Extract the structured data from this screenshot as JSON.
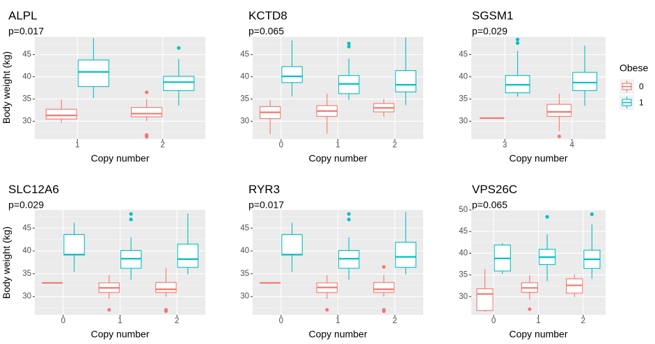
{
  "chart_data": {
    "type": "box",
    "ylabel": "Body weight (kg)",
    "xlabel": "Copy number",
    "legend": {
      "title": "Obese",
      "position": "right",
      "entries": [
        {
          "label": "0",
          "color": "#F8766D"
        },
        {
          "label": "1",
          "color": "#00BFC4"
        }
      ]
    },
    "panels": [
      {
        "title": "ALPL",
        "pvalue": "p=0.017",
        "ylim": [
          26,
          49
        ],
        "yticks": [
          "30",
          "35",
          "40",
          "45"
        ],
        "categories": [
          "1",
          "2"
        ],
        "boxes": [
          {
            "category": "1",
            "group": "0",
            "whislo": 29.6,
            "q1": 30.5,
            "med": 31.3,
            "q3": 32.7,
            "whishi": 34.9,
            "outliers": []
          },
          {
            "category": "1",
            "group": "1",
            "whislo": 35.2,
            "q1": 37.8,
            "med": 41.1,
            "q3": 43.8,
            "whishi": 48.7,
            "outliers": []
          },
          {
            "category": "2",
            "group": "0",
            "whislo": 30.0,
            "q1": 31.0,
            "med": 31.7,
            "q3": 33.1,
            "whishi": 35.0,
            "outliers": [
              36.5,
              26.9,
              26.5
            ]
          },
          {
            "category": "2",
            "group": "1",
            "whislo": 33.5,
            "q1": 36.9,
            "med": 38.8,
            "q3": 40.1,
            "whishi": 44.0,
            "outliers": [
              46.5
            ]
          }
        ]
      },
      {
        "title": "KCTD8",
        "pvalue": "p=0.065",
        "ylim": [
          26,
          49
        ],
        "yticks": [
          "30",
          "35",
          "40",
          "45"
        ],
        "categories": [
          "0",
          "1",
          "2"
        ],
        "boxes": [
          {
            "category": "0",
            "group": "0",
            "whislo": 27.1,
            "q1": 30.6,
            "med": 32.0,
            "q3": 33.3,
            "whishi": 34.7,
            "outliers": []
          },
          {
            "category": "0",
            "group": "1",
            "whislo": 35.6,
            "q1": 38.7,
            "med": 40.1,
            "q3": 42.3,
            "whishi": 48.2,
            "outliers": []
          },
          {
            "category": "1",
            "group": "0",
            "whislo": 27.2,
            "q1": 31.1,
            "med": 32.3,
            "q3": 33.5,
            "whishi": 36.2,
            "outliers": []
          },
          {
            "category": "1",
            "group": "1",
            "whislo": 34.8,
            "q1": 36.2,
            "med": 38.4,
            "q3": 40.3,
            "whishi": 44.1,
            "outliers": [
              47.5,
              46.8
            ]
          },
          {
            "category": "2",
            "group": "0",
            "whislo": 31.0,
            "q1": 32.1,
            "med": 33.0,
            "q3": 34.0,
            "whishi": 35.0,
            "outliers": []
          },
          {
            "category": "2",
            "group": "1",
            "whislo": 33.6,
            "q1": 36.6,
            "med": 38.2,
            "q3": 41.4,
            "whishi": 48.8,
            "outliers": []
          }
        ]
      },
      {
        "title": "SGSM1",
        "pvalue": "p=0.029",
        "ylim": [
          26,
          49
        ],
        "yticks": [
          "30",
          "35",
          "40",
          "45"
        ],
        "categories": [
          "3",
          "4"
        ],
        "boxes": [
          {
            "category": "3",
            "group": "0",
            "whislo": 30.7,
            "q1": 30.7,
            "med": 30.7,
            "q3": 30.7,
            "whishi": 30.7,
            "outliers": []
          },
          {
            "category": "3",
            "group": "1",
            "whislo": 35.5,
            "q1": 36.4,
            "med": 38.2,
            "q3": 40.3,
            "whishi": 45.8,
            "outliers": [
              48.4,
              47.6
            ]
          },
          {
            "category": "4",
            "group": "0",
            "whislo": 27.8,
            "q1": 31.1,
            "med": 32.1,
            "q3": 33.8,
            "whishi": 36.2,
            "outliers": [
              26.6
            ]
          },
          {
            "category": "4",
            "group": "1",
            "whislo": 33.5,
            "q1": 36.9,
            "med": 38.7,
            "q3": 41.0,
            "whishi": 47.0,
            "outliers": []
          }
        ]
      },
      {
        "title": "SLC12A6",
        "pvalue": "p=0.029",
        "ylim": [
          26,
          49
        ],
        "yticks": [
          "30",
          "35",
          "40",
          "45"
        ],
        "categories": [
          "0",
          "1",
          "2"
        ],
        "boxes": [
          {
            "category": "0",
            "group": "0",
            "whislo": 33.0,
            "q1": 33.0,
            "med": 33.0,
            "q3": 33.0,
            "whishi": 33.0,
            "outliers": []
          },
          {
            "category": "0",
            "group": "1",
            "whislo": 35.4,
            "q1": 39.1,
            "med": 39.2,
            "q3": 43.6,
            "whishi": 46.2,
            "outliers": []
          },
          {
            "category": "1",
            "group": "0",
            "whislo": 29.5,
            "q1": 30.9,
            "med": 31.9,
            "q3": 33.0,
            "whishi": 34.7,
            "outliers": [
              27.1
            ]
          },
          {
            "category": "1",
            "group": "1",
            "whislo": 33.7,
            "q1": 36.2,
            "med": 38.3,
            "q3": 40.1,
            "whishi": 43.0,
            "outliers": [
              48.1,
              46.9
            ]
          },
          {
            "category": "2",
            "group": "0",
            "whislo": 30.0,
            "q1": 30.9,
            "med": 31.6,
            "q3": 33.1,
            "whishi": 36.2,
            "outliers": [
              27.1,
              26.8
            ]
          },
          {
            "category": "2",
            "group": "1",
            "whislo": 34.9,
            "q1": 36.4,
            "med": 38.2,
            "q3": 41.5,
            "whishi": 48.2,
            "outliers": []
          }
        ]
      },
      {
        "title": "RYR3",
        "pvalue": "p=0.017",
        "ylim": [
          26,
          49
        ],
        "yticks": [
          "30",
          "35",
          "40",
          "45"
        ],
        "categories": [
          "0",
          "1",
          "2"
        ],
        "boxes": [
          {
            "category": "0",
            "group": "0",
            "whislo": 33.0,
            "q1": 33.0,
            "med": 33.0,
            "q3": 33.0,
            "whishi": 33.0,
            "outliers": []
          },
          {
            "category": "0",
            "group": "1",
            "whislo": 35.4,
            "q1": 39.1,
            "med": 39.2,
            "q3": 43.6,
            "whishi": 46.2,
            "outliers": []
          },
          {
            "category": "1",
            "group": "0",
            "whislo": 29.5,
            "q1": 30.9,
            "med": 32.0,
            "q3": 33.0,
            "whishi": 34.7,
            "outliers": [
              27.1
            ]
          },
          {
            "category": "1",
            "group": "1",
            "whislo": 33.7,
            "q1": 36.2,
            "med": 38.3,
            "q3": 40.1,
            "whishi": 43.0,
            "outliers": [
              48.1,
              46.9
            ]
          },
          {
            "category": "2",
            "group": "0",
            "whislo": 30.0,
            "q1": 30.9,
            "med": 31.6,
            "q3": 33.1,
            "whishi": 34.7,
            "outliers": [
              36.5,
              27.1,
              26.8
            ]
          },
          {
            "category": "2",
            "group": "1",
            "whislo": 34.9,
            "q1": 36.4,
            "med": 38.7,
            "q3": 41.9,
            "whishi": 48.6,
            "outliers": []
          }
        ]
      },
      {
        "title": "VPS26C",
        "pvalue": "p=0.065",
        "ylim": [
          25.8,
          50
        ],
        "yticks": [
          "30",
          "35",
          "40",
          "45",
          "50"
        ],
        "categories": [
          "0",
          "1",
          "2"
        ],
        "boxes": [
          {
            "category": "0",
            "group": "0",
            "whislo": 26.5,
            "q1": 26.8,
            "med": 30.6,
            "q3": 31.8,
            "whishi": 36.3,
            "outliers": []
          },
          {
            "category": "0",
            "group": "1",
            "whislo": 35.2,
            "q1": 35.9,
            "med": 38.8,
            "q3": 41.9,
            "whishi": 42.3,
            "outliers": []
          },
          {
            "category": "1",
            "group": "0",
            "whislo": 29.3,
            "q1": 31.0,
            "med": 32.0,
            "q3": 33.2,
            "whishi": 34.9,
            "outliers": [
              27.1
            ]
          },
          {
            "category": "1",
            "group": "1",
            "whislo": 33.6,
            "q1": 37.4,
            "med": 39.1,
            "q3": 40.9,
            "whishi": 44.4,
            "outliers": [
              48.4
            ]
          },
          {
            "category": "2",
            "group": "0",
            "whislo": 29.9,
            "q1": 30.8,
            "med": 32.6,
            "q3": 34.1,
            "whishi": 35.1,
            "outliers": []
          },
          {
            "category": "2",
            "group": "1",
            "whislo": 34.1,
            "q1": 36.5,
            "med": 38.6,
            "q3": 40.7,
            "whishi": 46.7,
            "outliers": [
              49.0
            ]
          }
        ]
      }
    ]
  }
}
